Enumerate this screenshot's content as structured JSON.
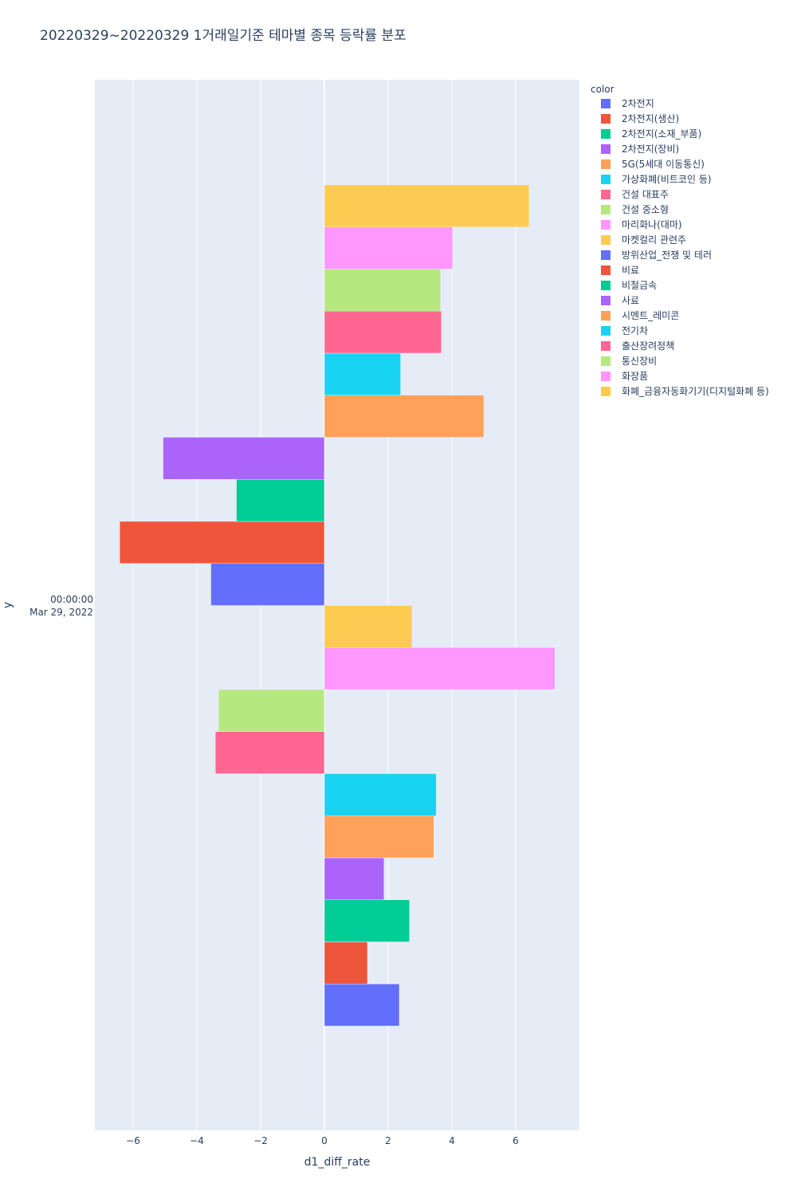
{
  "chart_data": {
    "type": "bar",
    "orientation": "horizontal",
    "barmode": "group",
    "title": "20220329~20220329 1거래일기준 테마별 종목 등락률 분포",
    "xlabel": "d1_diff_rate",
    "ylabel": "y",
    "y_category_lines": [
      "00:00:00",
      "Mar 29, 2022"
    ],
    "xlim": [
      -7.2,
      8.0
    ],
    "xticks": [
      -6,
      -4,
      -2,
      0,
      2,
      4,
      6
    ],
    "xtick_labels": [
      "−6",
      "−4",
      "−2",
      "0",
      "2",
      "4",
      "6"
    ],
    "grid": true,
    "legend_title": "color",
    "legend_position": "right",
    "series": [
      {
        "name": "2차전지",
        "value": 2.35,
        "color": "#636efa"
      },
      {
        "name": "2차전지(생산)",
        "value": 1.35,
        "color": "#EF553B"
      },
      {
        "name": "2차전지(소재_부품)",
        "value": 2.67,
        "color": "#00cc96"
      },
      {
        "name": "2차전지(장비)",
        "value": 1.87,
        "color": "#ab63fa"
      },
      {
        "name": "5G(5세대 이동통신)",
        "value": 3.43,
        "color": "#FFA15A"
      },
      {
        "name": "가상화폐(비트코인 등)",
        "value": 3.51,
        "color": "#19d3f3"
      },
      {
        "name": "건설 대표주",
        "value": -3.42,
        "color": "#FF6692"
      },
      {
        "name": "건설 중소형",
        "value": -3.32,
        "color": "#B6E880"
      },
      {
        "name": "마리화나(대마)",
        "value": 7.23,
        "color": "#FF97FF"
      },
      {
        "name": "마켓컬리 관련주",
        "value": 2.75,
        "color": "#FECB52"
      },
      {
        "name": "방위산업_전쟁 및 테러",
        "value": -3.56,
        "color": "#636efa"
      },
      {
        "name": "비료",
        "value": -6.42,
        "color": "#EF553B"
      },
      {
        "name": "비철금속",
        "value": -2.76,
        "color": "#00cc96"
      },
      {
        "name": "사료",
        "value": -5.06,
        "color": "#ab63fa"
      },
      {
        "name": "시멘트_레미콘",
        "value": 5.0,
        "color": "#FFA15A"
      },
      {
        "name": "전기차",
        "value": 2.39,
        "color": "#19d3f3"
      },
      {
        "name": "출산장려정책",
        "value": 3.67,
        "color": "#FF6692"
      },
      {
        "name": "통신장비",
        "value": 3.64,
        "color": "#B6E880"
      },
      {
        "name": "화장품",
        "value": 4.02,
        "color": "#FF97FF"
      },
      {
        "name": "화폐_금융자동화기기(디지털화폐 등)",
        "value": 6.42,
        "color": "#FECB52"
      }
    ]
  }
}
